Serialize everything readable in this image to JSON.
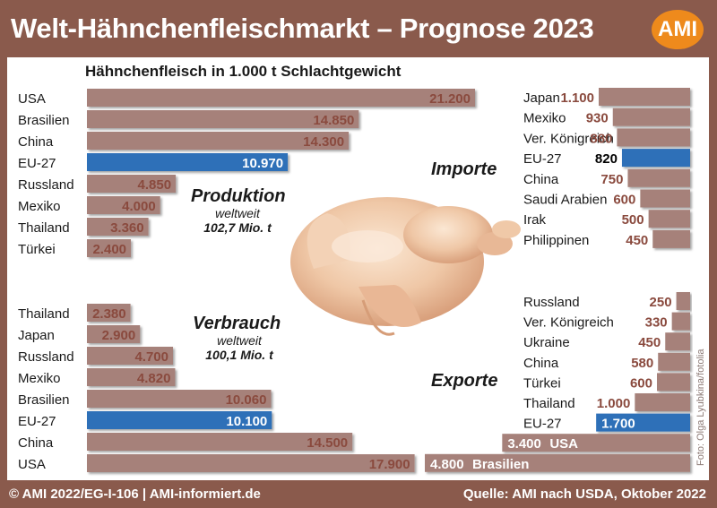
{
  "title": "Welt-Hähnchenfleischmarkt – Prognose 2023",
  "logo_text": "AMI",
  "subtitle": "Hähnchenfleisch in 1.000 t Schlachtgewicht",
  "footer_left": "© AMI 2022/EG-I-106 | AMI-informiert.de",
  "footer_right": "Quelle: AMI nach USDA, Oktober 2022",
  "photo_credit": "Foto: Olga Lyubkina/fotolia",
  "colors": {
    "bar": "#a6817a",
    "highlight": "#2e6fb8",
    "value_text": "#8a4a3e",
    "label_text": "#1a1a1a"
  },
  "image": {
    "description_icon": "raw-chicken-image"
  },
  "chart_data": [
    {
      "type": "bar",
      "title": "Produktion",
      "note": "weltweit",
      "total": "102,7 Mio. t",
      "categories": [
        "USA",
        "Brasilien",
        "China",
        "EU-27",
        "Russland",
        "Mexiko",
        "Thailand",
        "Türkei"
      ],
      "values": [
        21200,
        14850,
        14300,
        10970,
        4850,
        4000,
        3360,
        2400
      ],
      "labels": [
        "21.200",
        "14.850",
        "14.300",
        "10.970",
        "4.850",
        "4.000",
        "3.360",
        "2.400"
      ],
      "highlight": "EU-27"
    },
    {
      "type": "bar",
      "title": "Verbrauch",
      "note": "weltweit",
      "total": "100,1 Mio. t",
      "categories": [
        "Thailand",
        "Japan",
        "Russland",
        "Mexiko",
        "Brasilien",
        "EU-27",
        "China",
        "USA"
      ],
      "values": [
        2380,
        2900,
        4700,
        4820,
        10060,
        10100,
        14500,
        17900
      ],
      "labels": [
        "2.380",
        "2.900",
        "4.700",
        "4.820",
        "10.060",
        "10.100",
        "14.500",
        "17.900"
      ],
      "highlight": "EU-27"
    },
    {
      "type": "bar",
      "title": "Importe",
      "categories": [
        "Japan",
        "Mexiko",
        "Ver. Königreich",
        "EU-27",
        "China",
        "Saudi Arabien",
        "Irak",
        "Philippinen"
      ],
      "values": [
        1100,
        930,
        880,
        820,
        750,
        600,
        500,
        450
      ],
      "labels": [
        "1.100",
        "930",
        "880",
        "820",
        "750",
        "600",
        "500",
        "450"
      ],
      "highlight": "EU-27"
    },
    {
      "type": "bar",
      "title": "Exporte",
      "categories": [
        "Russland",
        "Ver. Königreich",
        "Ukraine",
        "China",
        "Türkei",
        "Thailand",
        "EU-27",
        "USA",
        "Brasilien"
      ],
      "values": [
        250,
        330,
        450,
        580,
        600,
        1000,
        1700,
        3400,
        4800
      ],
      "labels": [
        "250",
        "330",
        "450",
        "580",
        "600",
        "1.000",
        "1.700",
        "3.400",
        "4.800"
      ],
      "highlight": "EU-27"
    }
  ]
}
